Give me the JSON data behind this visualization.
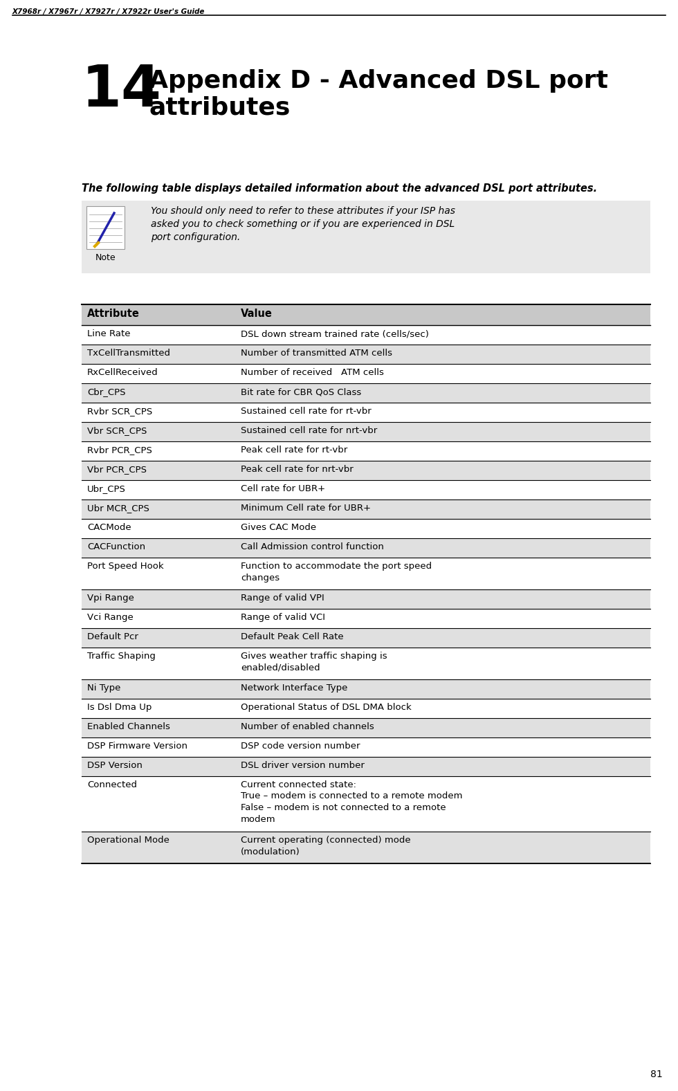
{
  "page_header": "X7968r / X7967r / X7927r / X7922r User's Guide",
  "page_number": "81",
  "chapter_number": "14",
  "chapter_title": "Appendix D - Advanced DSL port\nattributes",
  "intro_text": "The following table displays detailed information about the advanced DSL port attributes.",
  "note_text": "You should only need to refer to these attributes if your ISP has\nasked you to check something or if you are experienced in DSL\nport configuration.",
  "table_header": [
    "Attribute",
    "Value"
  ],
  "table_rows": [
    [
      "Line Rate",
      "DSL down stream trained rate (cells/sec)"
    ],
    [
      "TxCellTransmitted",
      "Number of transmitted ATM cells"
    ],
    [
      "RxCellReceived",
      "Number of received   ATM cells"
    ],
    [
      "Cbr_CPS",
      "Bit rate for CBR QoS Class"
    ],
    [
      "Rvbr SCR_CPS",
      "Sustained cell rate for rt-vbr"
    ],
    [
      "Vbr SCR_CPS",
      "Sustained cell rate for nrt-vbr"
    ],
    [
      "Rvbr PCR_CPS",
      "Peak cell rate for rt-vbr"
    ],
    [
      "Vbr PCR_CPS",
      "Peak cell rate for nrt-vbr"
    ],
    [
      "Ubr_CPS",
      "Cell rate for UBR+"
    ],
    [
      "Ubr MCR_CPS",
      "Minimum Cell rate for UBR+"
    ],
    [
      "CACMode",
      "Gives CAC Mode"
    ],
    [
      "CACFunction",
      "Call Admission control function"
    ],
    [
      "Port Speed Hook",
      "Function to accommodate the port speed\nchanges"
    ],
    [
      "Vpi Range",
      "Range of valid VPI"
    ],
    [
      "Vci Range",
      "Range of valid VCI"
    ],
    [
      "Default Pcr",
      "Default Peak Cell Rate"
    ],
    [
      "Traffic Shaping",
      "Gives weather traffic shaping is\nenabled/disabled"
    ],
    [
      "Ni Type",
      "Network Interface Type"
    ],
    [
      "Is Dsl Dma Up",
      "Operational Status of DSL DMA block"
    ],
    [
      "Enabled Channels",
      "Number of enabled channels"
    ],
    [
      "DSP Firmware Version",
      "DSP code version number"
    ],
    [
      "DSP Version",
      "DSL driver version number"
    ],
    [
      "Connected",
      "Current connected state:\nTrue – modem is connected to a remote modem\nFalse – modem is not connected to a remote\nmodem"
    ],
    [
      "Operational Mode",
      "Current operating (connected) mode\n(modulation)"
    ]
  ],
  "shaded_rows": [
    1,
    3,
    5,
    7,
    9,
    11,
    13,
    15,
    17,
    19,
    21,
    23
  ],
  "bg_color": "#ffffff",
  "header_bg": "#c8c8c8",
  "shaded_bg": "#e0e0e0",
  "note_bg": "#e8e8e8"
}
